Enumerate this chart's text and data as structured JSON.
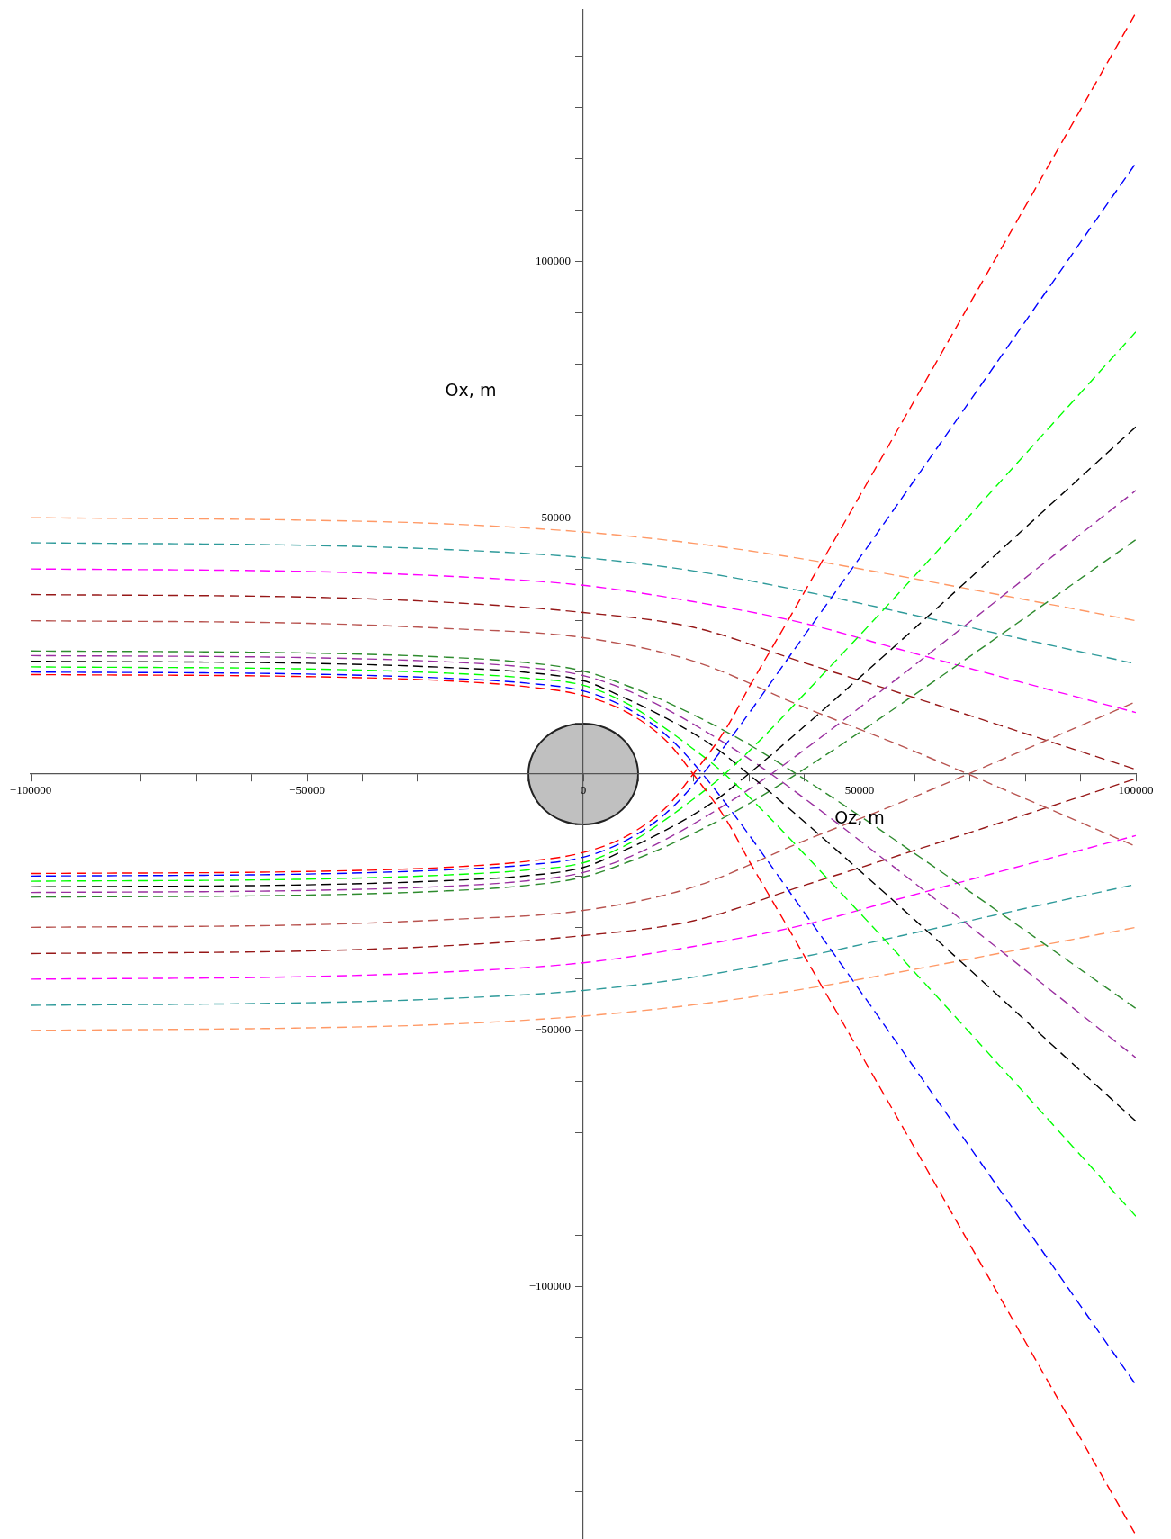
{
  "chart_data": {
    "type": "line",
    "xlabel": "Oz, m",
    "ylabel": "Ox, m",
    "xlim": [
      -100000,
      100000
    ],
    "xticks": [
      {
        "value": -100000,
        "label": "−100000"
      },
      {
        "value": -90000,
        "label": null
      },
      {
        "value": -80000,
        "label": null
      },
      {
        "value": -70000,
        "label": null
      },
      {
        "value": -60000,
        "label": null
      },
      {
        "value": -50000,
        "label": "−50000"
      },
      {
        "value": -40000,
        "label": null
      },
      {
        "value": -30000,
        "label": null
      },
      {
        "value": -20000,
        "label": null
      },
      {
        "value": -10000,
        "label": null
      },
      0,
      {
        "value": 10000,
        "label": null
      },
      {
        "value": 20000,
        "label": null
      },
      {
        "value": 30000,
        "label": null
      },
      {
        "value": 40000,
        "label": null
      },
      50000,
      {
        "value": 60000,
        "label": null
      },
      {
        "value": 70000,
        "label": null
      },
      {
        "value": 80000,
        "label": null
      },
      {
        "value": 90000,
        "label": null
      },
      100000
    ],
    "ylim": [
      -149000,
      149000
    ],
    "yticks": [
      {
        "value": -140000,
        "label": null
      },
      {
        "value": -130000,
        "label": null
      },
      {
        "value": -120000,
        "label": null
      },
      {
        "value": -110000,
        "label": null
      },
      {
        "value": -100000,
        "label": "−100000"
      },
      {
        "value": -90000,
        "label": null
      },
      {
        "value": -80000,
        "label": null
      },
      {
        "value": -70000,
        "label": null
      },
      {
        "value": -60000,
        "label": null
      },
      {
        "value": -50000,
        "label": "−50000"
      },
      {
        "value": -40000,
        "label": null
      },
      {
        "value": -30000,
        "label": null
      },
      {
        "value": -20000,
        "label": null
      },
      {
        "value": -10000,
        "label": null
      },
      {
        "value": 10000,
        "label": null
      },
      {
        "value": 20000,
        "label": null
      },
      {
        "value": 30000,
        "label": null
      },
      {
        "value": 40000,
        "label": null
      },
      50000,
      {
        "value": 60000,
        "label": null
      },
      {
        "value": 70000,
        "label": null
      },
      {
        "value": 80000,
        "label": null
      },
      {
        "value": 90000,
        "label": null
      },
      100000,
      {
        "value": 110000,
        "label": null
      },
      {
        "value": 120000,
        "label": null
      },
      {
        "value": 130000,
        "label": null
      },
      {
        "value": 140000,
        "label": null
      }
    ],
    "grid": false,
    "legend": false,
    "marker": "none",
    "line_style": "dashed",
    "series": [
      {
        "color": "#ff0000",
        "x": [
          -100000,
          -50000,
          -25000,
          -10000,
          0,
          8000,
          15000,
          19900,
          25800,
          30200,
          36700,
          100000
        ],
        "values": [
          19400,
          19000,
          18200,
          17000,
          15300,
          12000,
          6500,
          0,
          -8800,
          -17300,
          -29300,
          -148400
        ]
      },
      {
        "color": "#ff0000",
        "x": [
          -100000,
          -50000,
          -25000,
          -10000,
          0,
          8000,
          15000,
          19900,
          25800,
          30200,
          36700,
          100000
        ],
        "values": [
          -19400,
          -19000,
          -18200,
          -17000,
          -15300,
          -12000,
          -6500,
          0,
          8800,
          17300,
          29300,
          148400
        ]
      },
      {
        "color": "#0000ff",
        "x": [
          -100000,
          -50000,
          -25000,
          -10000,
          0,
          8000,
          15000,
          21600,
          40000,
          100000
        ],
        "values": [
          19900,
          19500,
          18700,
          17700,
          16200,
          12800,
          7600,
          0,
          -27000,
          -119100
        ]
      },
      {
        "color": "#0000ff",
        "x": [
          -100000,
          -50000,
          -25000,
          -10000,
          0,
          8000,
          15000,
          21600,
          40000,
          100000
        ],
        "values": [
          -19900,
          -19500,
          -18700,
          -17700,
          -16200,
          -12800,
          -7600,
          0,
          27000,
          119100
        ]
      },
      {
        "color": "#00ff00",
        "x": [
          -100000,
          -50000,
          -25000,
          -10000,
          0,
          8000,
          15000,
          18300,
          25600,
          45000,
          100000
        ],
        "values": [
          20900,
          20500,
          19700,
          18700,
          17300,
          13700,
          8800,
          6200,
          0,
          -21300,
          -86200
        ]
      },
      {
        "color": "#00ff00",
        "x": [
          -100000,
          -50000,
          -25000,
          -10000,
          0,
          8000,
          15000,
          18300,
          25600,
          45000,
          100000
        ],
        "values": [
          -20900,
          -20500,
          -19700,
          -18700,
          -17300,
          -13700,
          -8800,
          -6200,
          0,
          21300,
          86200
        ]
      },
      {
        "color": "#000000",
        "x": [
          -100000,
          -50000,
          -25000,
          -10000,
          0,
          8000,
          15000,
          23300,
          29900,
          50000,
          100000
        ],
        "values": [
          22000,
          21600,
          20800,
          19800,
          18200,
          14600,
          10900,
          5600,
          0,
          -18800,
          -67700
        ]
      },
      {
        "color": "#000000",
        "x": [
          -100000,
          -50000,
          -25000,
          -10000,
          0,
          8000,
          15000,
          23300,
          29900,
          50000,
          100000
        ],
        "values": [
          -22000,
          -21600,
          -20800,
          -19800,
          -18200,
          -14600,
          -10900,
          -5600,
          0,
          18800,
          67700
        ]
      },
      {
        "color": "#9a30a0",
        "x": [
          -100000,
          -50000,
          -25000,
          -10000,
          0,
          8000,
          15000,
          25800,
          34000,
          55000,
          100000
        ],
        "values": [
          23100,
          22700,
          21900,
          20800,
          19200,
          16300,
          12700,
          5900,
          0,
          -17100,
          -55300
        ]
      },
      {
        "color": "#9a30a0",
        "x": [
          -100000,
          -50000,
          -25000,
          -10000,
          0,
          8000,
          15000,
          25800,
          34000,
          55000,
          100000
        ],
        "values": [
          -23100,
          -22700,
          -21900,
          -20800,
          -19200,
          -16300,
          -12700,
          -5900,
          0,
          17100,
          55300
        ]
      },
      {
        "color": "#2e8b2e",
        "x": [
          -100000,
          -50000,
          -25000,
          -10000,
          0,
          8000,
          15000,
          27500,
          38600,
          60000,
          100000
        ],
        "values": [
          24000,
          23600,
          22800,
          21700,
          20100,
          17200,
          14100,
          7300,
          0,
          -15500,
          -45700
        ]
      },
      {
        "color": "#2e8b2e",
        "x": [
          -100000,
          -50000,
          -25000,
          -10000,
          0,
          8000,
          15000,
          27500,
          38600,
          60000,
          100000
        ],
        "values": [
          -24000,
          -23600,
          -22800,
          -21700,
          -20100,
          -17200,
          -14100,
          -7300,
          0,
          15500,
          45700
        ]
      },
      {
        "color": "#b85450",
        "x": [
          -100000,
          -50000,
          -25000,
          0,
          20000,
          40000,
          57300,
          80000,
          100000
        ],
        "values": [
          29900,
          29400,
          28400,
          26600,
          22000,
          13000,
          5600,
          -4800,
          -14100
        ]
      },
      {
        "color": "#b85450",
        "x": [
          -100000,
          -50000,
          -25000,
          0,
          20000,
          40000,
          57300,
          80000,
          100000
        ],
        "values": [
          -29900,
          -29400,
          -28400,
          -26600,
          -22000,
          -13000,
          -5600,
          4800,
          14100
        ]
      },
      {
        "color": "#961818",
        "x": [
          -100000,
          -50000,
          -25000,
          0,
          20000,
          40000,
          57300,
          80000,
          100000
        ],
        "values": [
          35000,
          34500,
          33500,
          31500,
          28600,
          21700,
          15800,
          7900,
          900
        ]
      },
      {
        "color": "#961818",
        "x": [
          -100000,
          -50000,
          -25000,
          0,
          20000,
          40000,
          57300,
          80000,
          100000
        ],
        "values": [
          -35000,
          -34500,
          -33500,
          -31500,
          -28600,
          -21700,
          -15800,
          -7900,
          -900
        ]
      },
      {
        "color": "#ff00ff",
        "x": [
          -100000,
          -50000,
          -25000,
          0,
          20000,
          40000,
          57300,
          80000,
          100000
        ],
        "values": [
          40000,
          39500,
          38600,
          36800,
          33600,
          29400,
          24300,
          17700,
          12000
        ]
      },
      {
        "color": "#ff00ff",
        "x": [
          -100000,
          -50000,
          -25000,
          0,
          20000,
          40000,
          57300,
          80000,
          100000
        ],
        "values": [
          -40000,
          -39500,
          -38600,
          -36800,
          -33600,
          -29400,
          -24300,
          -17700,
          -12000
        ]
      },
      {
        "color": "#2e9a9a",
        "x": [
          -100000,
          -50000,
          -25000,
          0,
          20000,
          40000,
          57300,
          80000,
          100000
        ],
        "values": [
          45100,
          44600,
          43800,
          42200,
          39600,
          35600,
          31600,
          26200,
          21500
        ]
      },
      {
        "color": "#2e9a9a",
        "x": [
          -100000,
          -50000,
          -25000,
          0,
          20000,
          40000,
          57300,
          80000,
          100000
        ],
        "values": [
          -45100,
          -44600,
          -43800,
          -42200,
          -39600,
          -35600,
          -31600,
          -26200,
          -21500
        ]
      },
      {
        "color": "#ff9966",
        "x": [
          -100000,
          -50000,
          -25000,
          0,
          20000,
          40000,
          57300,
          80000,
          100000
        ],
        "values": [
          50000,
          49500,
          48800,
          47200,
          45000,
          41900,
          38600,
          34000,
          29900
        ]
      },
      {
        "color": "#ff9966",
        "x": [
          -100000,
          -50000,
          -25000,
          0,
          20000,
          40000,
          57300,
          80000,
          100000
        ],
        "values": [
          -50000,
          -49500,
          -48800,
          -47200,
          -45000,
          -41900,
          -38600,
          -34000,
          -29900
        ]
      }
    ]
  }
}
